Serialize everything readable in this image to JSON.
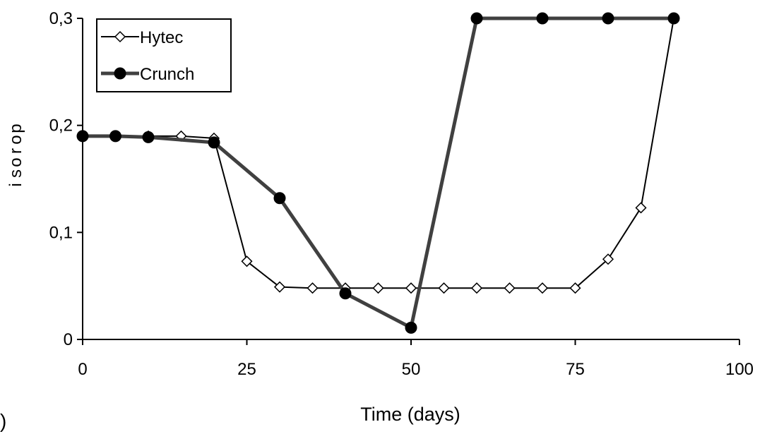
{
  "chart_data": {
    "type": "line",
    "xlabel": "Time (days)",
    "ylabel": "porosity",
    "ylim": [
      0,
      0.3
    ],
    "xlim": [
      0,
      100
    ],
    "x_ticks": [
      "0",
      "25",
      "50",
      "75",
      "100"
    ],
    "y_ticks": [
      "0",
      "0,1",
      "0,2",
      "0,3"
    ],
    "legend_position": "top-left",
    "grid": false,
    "series": [
      {
        "name": "Hytec",
        "marker": "open-diamond",
        "color": "#000000",
        "points": [
          [
            0,
            0.19
          ],
          [
            5,
            0.19
          ],
          [
            10,
            0.19
          ],
          [
            15,
            0.19
          ],
          [
            20,
            0.188
          ],
          [
            25,
            0.073
          ],
          [
            30,
            0.049
          ],
          [
            35,
            0.048
          ],
          [
            40,
            0.048
          ],
          [
            45,
            0.048
          ],
          [
            50,
            0.048
          ],
          [
            55,
            0.048
          ],
          [
            60,
            0.048
          ],
          [
            65,
            0.048
          ],
          [
            70,
            0.048
          ],
          [
            75,
            0.048
          ],
          [
            80,
            0.075
          ],
          [
            85,
            0.123
          ],
          [
            90,
            0.3
          ]
        ]
      },
      {
        "name": "Crunch",
        "marker": "filled-circle",
        "color": "#404040",
        "points": [
          [
            0,
            0.19
          ],
          [
            5,
            0.19
          ],
          [
            10,
            0.189
          ],
          [
            20,
            0.184
          ],
          [
            30,
            0.132
          ],
          [
            40,
            0.043
          ],
          [
            50,
            0.011
          ],
          [
            60,
            0.3
          ],
          [
            70,
            0.3
          ],
          [
            80,
            0.3
          ],
          [
            90,
            0.3
          ]
        ]
      }
    ]
  },
  "corner_label": ")"
}
